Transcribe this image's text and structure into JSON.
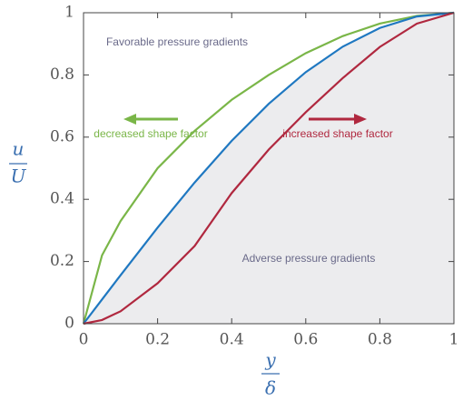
{
  "chart_data": {
    "type": "line",
    "x": [
      0,
      0.05,
      0.1,
      0.2,
      0.3,
      0.4,
      0.5,
      0.6,
      0.7,
      0.8,
      0.9,
      1
    ],
    "series": [
      {
        "color": "#7ab648",
        "values": [
          0,
          0.22,
          0.33,
          0.5,
          0.62,
          0.72,
          0.8,
          0.87,
          0.925,
          0.965,
          0.99,
          1
        ]
      },
      {
        "color": "#1f78c1",
        "values": [
          0,
          0.078,
          0.156,
          0.309,
          0.454,
          0.588,
          0.707,
          0.809,
          0.891,
          0.951,
          0.988,
          1
        ]
      },
      {
        "color": "#b0283f",
        "values": [
          0,
          0.012,
          0.04,
          0.13,
          0.25,
          0.42,
          0.56,
          0.68,
          0.79,
          0.89,
          0.965,
          1
        ]
      }
    ],
    "xlim": [
      0,
      1
    ],
    "ylim": [
      0,
      1
    ],
    "xticks": [
      0,
      0.2,
      0.4,
      0.6,
      0.8,
      1
    ],
    "yticks": [
      0,
      0.2,
      0.4,
      0.6,
      0.8,
      1
    ],
    "x_label": {
      "numerator": "y",
      "denominator": "δ"
    },
    "y_label": {
      "numerator": "u",
      "denominator": "U"
    },
    "shade_color": "#ececee",
    "annotations": {
      "favorable": "Favorable pressure gradients",
      "adverse": "Adverse pressure gradients",
      "decreased": "decreased shape factor",
      "increased": "increased shape factor"
    }
  }
}
